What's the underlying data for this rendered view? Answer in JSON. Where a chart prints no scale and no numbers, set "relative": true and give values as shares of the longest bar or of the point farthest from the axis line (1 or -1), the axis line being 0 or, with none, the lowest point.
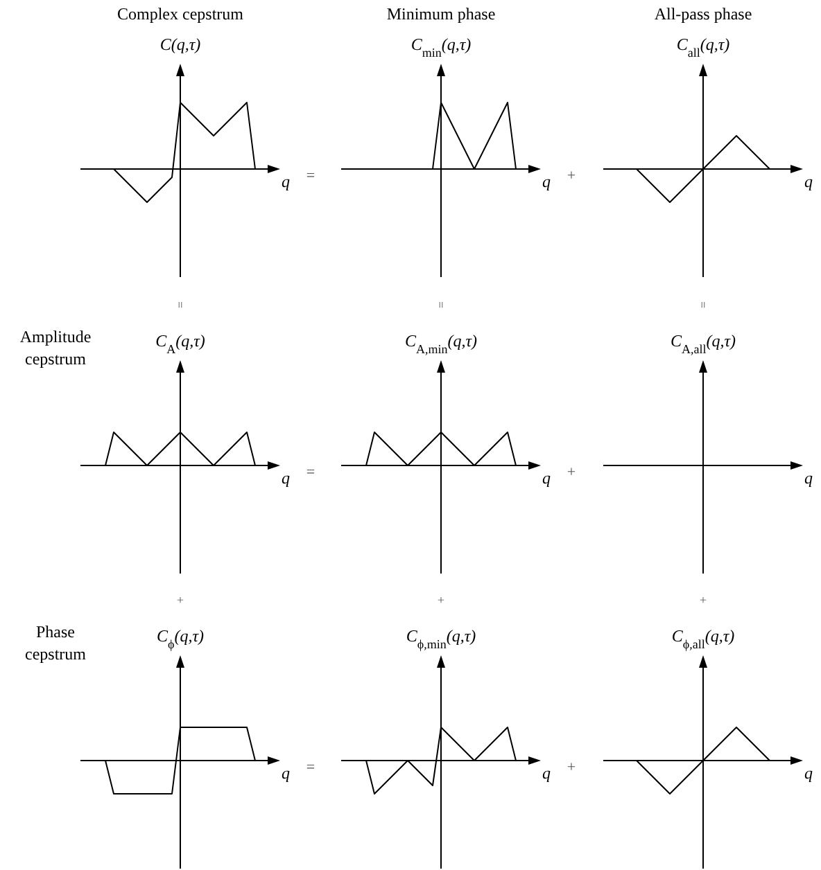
{
  "chart_data": [
    {
      "type": "line",
      "title": "Complex cepstrum",
      "ylabel": "C(q,τ)",
      "xlabel": "q",
      "relative": true,
      "annotations": [
        "="
      ],
      "categories": [
        null,
        null,
        null,
        null,
        null,
        null,
        null,
        null,
        null,
        null,
        null,
        null,
        null,
        null,
        null,
        null,
        null,
        null,
        null
      ],
      "series": [
        {
          "color": "#000000",
          "values": [
            0,
            0,
            -0.125,
            -0.25,
            -0.375,
            -0.5,
            -0.375,
            -0.25,
            -0.125,
            1,
            0.875,
            0.75,
            0.625,
            0.5,
            0.625,
            0.75,
            0.875,
            1,
            0
          ]
        }
      ]
    },
    {
      "type": "line",
      "title": "Minimum phase",
      "ylabel": "C$_{min}$(q,τ)",
      "xlabel": "q",
      "relative": true,
      "annotations": [
        "+"
      ],
      "categories": [
        null,
        null,
        null,
        null,
        null,
        null,
        null,
        null,
        null,
        null,
        null,
        null,
        null,
        null,
        null,
        null,
        null,
        null,
        null
      ],
      "series": [
        {
          "color": "#000000",
          "values": [
            0,
            0,
            0,
            0,
            0,
            0,
            0,
            0,
            0,
            1,
            0.75,
            0.5,
            0.25,
            0,
            0.25,
            0.5,
            0.75,
            1,
            0
          ]
        }
      ]
    },
    {
      "type": "line",
      "title": "All-pass phase",
      "ylabel": "C$_{all}$(q,τ)",
      "xlabel": "q",
      "relative": true,
      "categories": [
        null,
        null,
        null,
        null,
        null,
        null,
        null,
        null,
        null,
        null,
        null,
        null,
        null,
        null,
        null,
        null,
        null,
        null,
        null
      ],
      "series": [
        {
          "color": "#000000",
          "values": [
            0,
            0,
            -0.25,
            -0.5,
            -0.75,
            -1,
            -0.75,
            -0.5,
            -0.25,
            0,
            0.25,
            0.5,
            0.75,
            1,
            0.75,
            0.5,
            0.25,
            0,
            0
          ]
        }
      ]
    },
    {
      "type": "line",
      "title": "Amplitude cepstrum",
      "ylabel": "C$_{A}$(q,τ)",
      "xlabel": "q",
      "relative": true,
      "annotations": [
        "=",
        "="
      ],
      "categories": [
        null,
        null,
        null,
        null,
        null,
        null,
        null,
        null,
        null,
        null,
        null,
        null,
        null,
        null,
        null,
        null,
        null,
        null,
        null
      ],
      "series": [
        {
          "color": "#000000",
          "values": [
            0,
            1,
            0.75,
            0.5,
            0.25,
            0,
            0.25,
            0.5,
            0.75,
            1,
            0.75,
            0.5,
            0.25,
            0,
            0.25,
            0.5,
            0.75,
            1,
            0
          ]
        }
      ]
    },
    {
      "type": "line",
      "ylabel": "C$_{A,min}$(q,τ)",
      "xlabel": "q",
      "relative": true,
      "annotations": [
        "=",
        "+"
      ],
      "categories": [
        null,
        null,
        null,
        null,
        null,
        null,
        null,
        null,
        null,
        null,
        null,
        null,
        null,
        null,
        null,
        null,
        null,
        null,
        null
      ],
      "series": [
        {
          "color": "#000000",
          "values": [
            0,
            1,
            0.75,
            0.5,
            0.25,
            0,
            0.25,
            0.5,
            0.75,
            1,
            0.75,
            0.5,
            0.25,
            0,
            0.25,
            0.5,
            0.75,
            1,
            0
          ]
        }
      ]
    },
    {
      "type": "other",
      "ylabel": "C$_{A,all}$(q,τ)",
      "xlabel": "q",
      "annotations": [
        "="
      ]
    },
    {
      "type": "line",
      "title": "Phase cepstrum",
      "ylabel": "C$_{ϕ}$(q,τ)",
      "xlabel": "q",
      "relative": true,
      "annotations": [
        "+",
        "="
      ],
      "categories": [
        null,
        null,
        null,
        null,
        null,
        null,
        null,
        null,
        null,
        null,
        null,
        null,
        null,
        null,
        null,
        null,
        null,
        null,
        null
      ],
      "series": [
        {
          "color": "#000000",
          "values": [
            0,
            -1,
            -1,
            -1,
            -1,
            -1,
            -1,
            -1,
            -1,
            1,
            1,
            1,
            1,
            1,
            1,
            1,
            1,
            1,
            0
          ]
        }
      ]
    },
    {
      "type": "line",
      "ylabel": "C$_{ϕ,min}$(q,τ)",
      "xlabel": "q",
      "relative": true,
      "annotations": [
        "+",
        "+"
      ],
      "categories": [
        null,
        null,
        null,
        null,
        null,
        null,
        null,
        null,
        null,
        null,
        null,
        null,
        null,
        null,
        null,
        null,
        null,
        null,
        null
      ],
      "series": [
        {
          "color": "#000000",
          "values": [
            0,
            -1,
            -0.75,
            -0.5,
            -0.25,
            0,
            -0.25,
            -0.5,
            -0.75,
            1,
            0.75,
            0.5,
            0.25,
            0,
            0.25,
            0.5,
            0.75,
            1,
            0
          ]
        }
      ]
    },
    {
      "type": "line",
      "ylabel": "C$_{ϕ,all}$(q,τ)",
      "xlabel": "q",
      "relative": true,
      "annotations": [
        "+"
      ],
      "categories": [
        null,
        null,
        null,
        null,
        null,
        null,
        null,
        null,
        null,
        null,
        null,
        null,
        null,
        null,
        null,
        null,
        null,
        null,
        null
      ],
      "series": [
        {
          "color": "#000000",
          "values": [
            0,
            0,
            -0.25,
            -0.5,
            -0.75,
            -1,
            -0.75,
            -0.5,
            -0.25,
            0,
            0.25,
            0.5,
            0.75,
            1,
            0.75,
            0.5,
            0.25,
            0,
            0
          ]
        }
      ]
    }
  ]
}
